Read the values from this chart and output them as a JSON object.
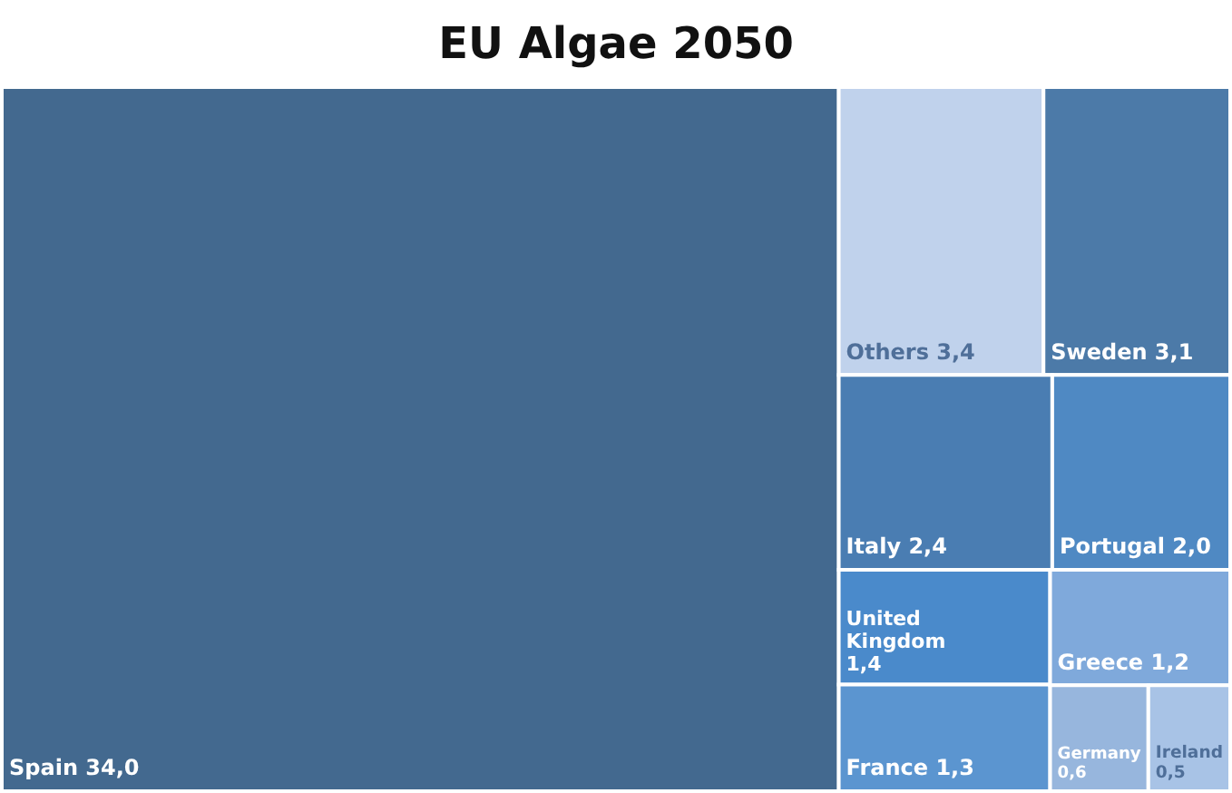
{
  "chart_data": {
    "type": "other",
    "title": "EU Algae 2050",
    "categories": [
      "Spain",
      "Others",
      "Sweden",
      "Italy",
      "Portugal",
      "United Kingdom",
      "France",
      "Greece",
      "Germany",
      "Ireland"
    ],
    "values": [
      34.0,
      3.4,
      3.1,
      2.4,
      2.0,
      1.4,
      1.3,
      1.2,
      0.6,
      0.5
    ],
    "value_labels": [
      "34,0",
      "3,4",
      "3,1",
      "2,4",
      "2,0",
      "1,4",
      "1,3",
      "1,2",
      "0,6",
      "0,5"
    ],
    "colors": [
      "#43698f",
      "#c0d2ec",
      "#4c7aa8",
      "#4a7db2",
      "#4f89c3",
      "#4a8acb",
      "#5b95d0",
      "#7fa9db",
      "#97b6dd",
      "#a8c3e6"
    ]
  }
}
